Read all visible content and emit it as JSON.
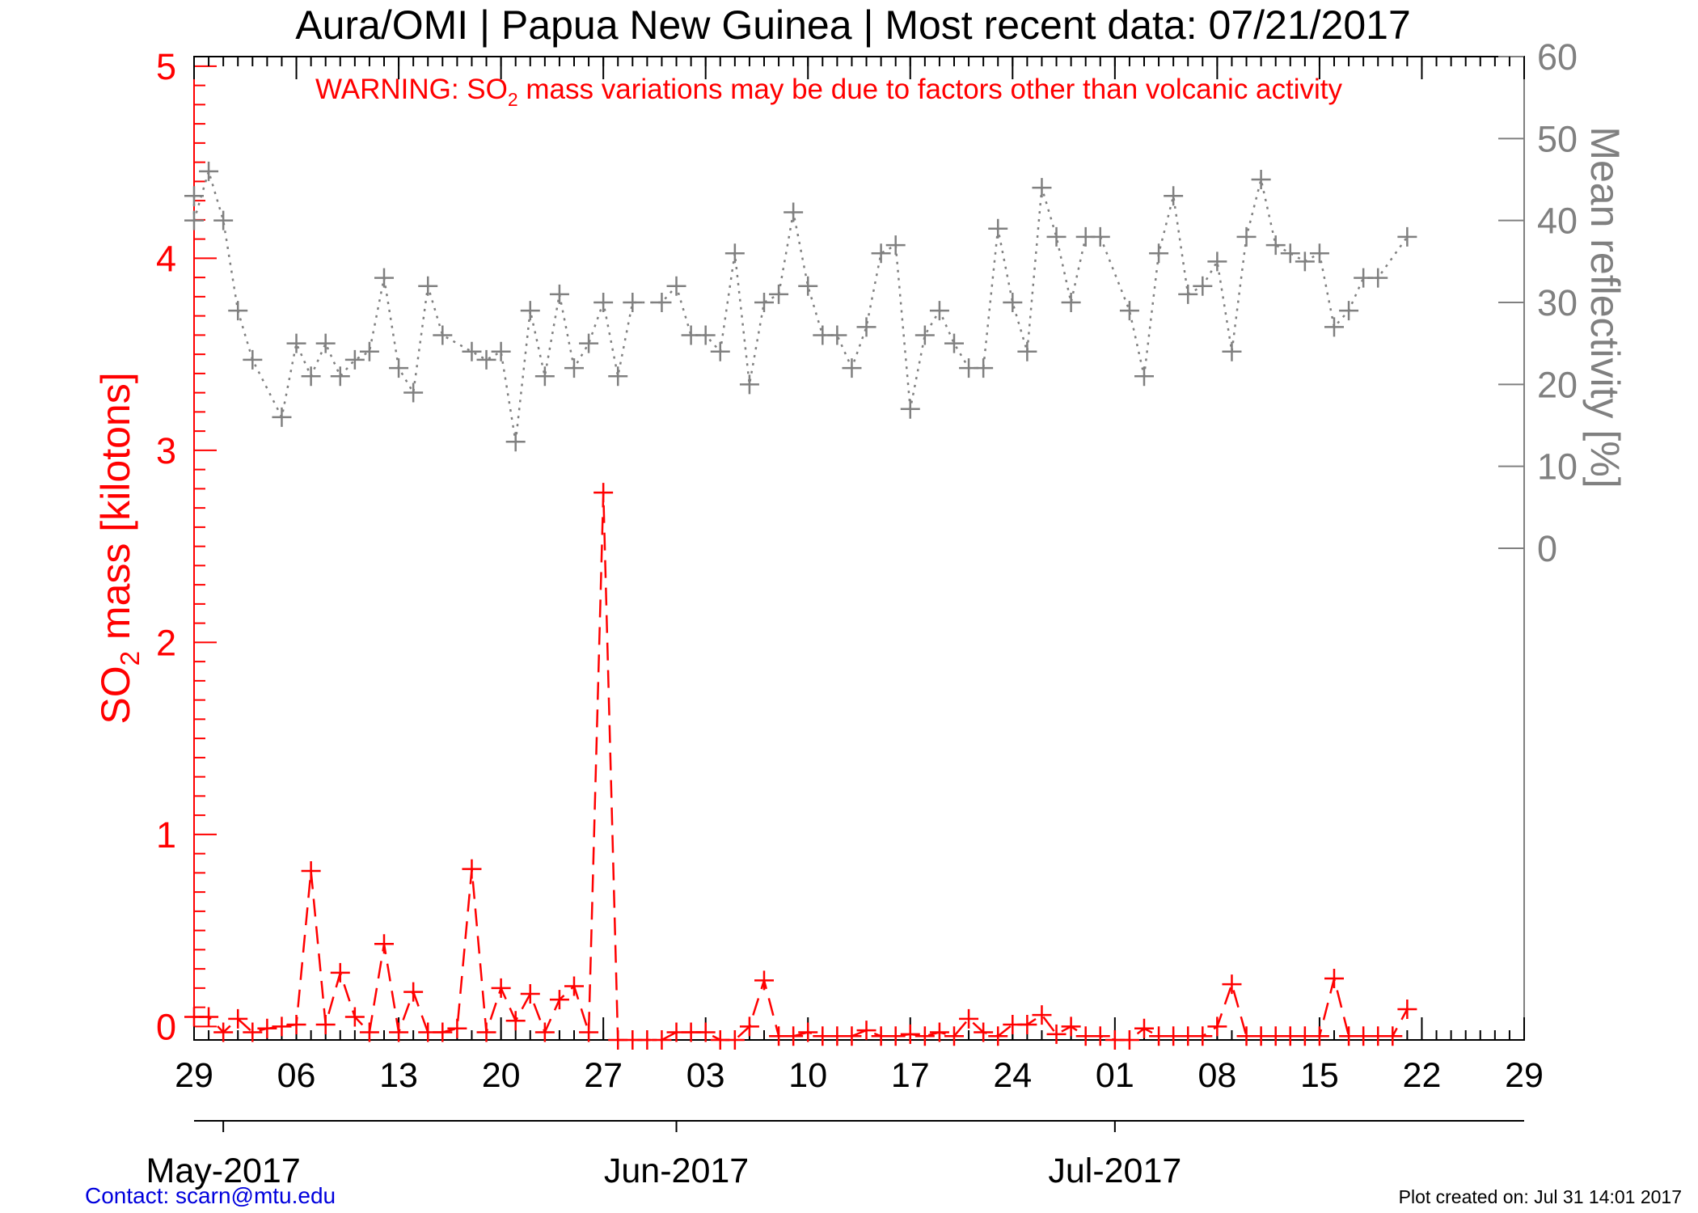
{
  "chart_data": {
    "type": "line",
    "title": "Aura/OMI | Papua New Guinea | Most recent data: 07/21/2017",
    "warning": {
      "prefix": "WARNING: SO",
      "subscript": "2",
      "suffix": " mass variations may be due to factors other than volcanic activity"
    },
    "left_axis": {
      "label_prefix": "SO",
      "label_subscript": "2",
      "label_suffix": " mass [kilotons]",
      "ylim": [
        -0.07,
        5.05
      ],
      "ticks": [
        0,
        1,
        2,
        3,
        4,
        5
      ],
      "tick_labels": [
        "0",
        "1",
        "2",
        "3",
        "4",
        "5"
      ],
      "color": "#ff0000"
    },
    "right_axis": {
      "label": "Mean reflectivity [%]",
      "ylim": [
        -60,
        60
      ],
      "ticks": [
        0,
        10,
        20,
        30,
        40,
        50,
        60
      ],
      "tick_labels": [
        "0",
        "10",
        "20",
        "30",
        "40",
        "50",
        "60"
      ],
      "color": "#808080"
    },
    "x_axis": {
      "start_date": "2017-04-29",
      "end_date": "2017-07-29",
      "tick_dates": [
        "2017-04-29",
        "2017-05-06",
        "2017-05-13",
        "2017-05-20",
        "2017-05-27",
        "2017-06-03",
        "2017-06-10",
        "2017-06-17",
        "2017-06-24",
        "2017-07-01",
        "2017-07-08",
        "2017-07-15",
        "2017-07-22",
        "2017-07-29"
      ],
      "tick_labels": [
        "29",
        "06",
        "13",
        "20",
        "27",
        "03",
        "10",
        "17",
        "24",
        "01",
        "08",
        "15",
        "22",
        "29"
      ],
      "month_dates": [
        "2017-05-01",
        "2017-06-01",
        "2017-07-01"
      ],
      "month_labels": [
        "May-2017",
        "Jun-2017",
        "Jul-2017"
      ]
    },
    "series": [
      {
        "name": "SO2 mass",
        "axis": "left",
        "color": "#ff0000",
        "style": "dashed",
        "points": [
          [
            "2017-04-29",
            0.05
          ],
          [
            "2017-04-30",
            0.05
          ],
          [
            "2017-05-01",
            -0.03
          ],
          [
            "2017-05-02",
            0.04
          ],
          [
            "2017-05-03",
            -0.03
          ],
          [
            "2017-05-04",
            -0.01
          ],
          [
            "2017-05-05",
            0.0
          ],
          [
            "2017-05-06",
            0.01
          ],
          [
            "2017-05-07",
            0.81
          ],
          [
            "2017-05-08",
            0.01
          ],
          [
            "2017-05-09",
            0.28
          ],
          [
            "2017-05-10",
            0.05
          ],
          [
            "2017-05-11",
            -0.03
          ],
          [
            "2017-05-12",
            0.43
          ],
          [
            "2017-05-13",
            -0.03
          ],
          [
            "2017-05-14",
            0.18
          ],
          [
            "2017-05-15",
            -0.03
          ],
          [
            "2017-05-16",
            -0.03
          ],
          [
            "2017-05-17",
            -0.01
          ],
          [
            "2017-05-18",
            0.82
          ],
          [
            "2017-05-19",
            -0.03
          ],
          [
            "2017-05-20",
            0.2
          ],
          [
            "2017-05-21",
            0.03
          ],
          [
            "2017-05-22",
            0.17
          ],
          [
            "2017-05-23",
            -0.03
          ],
          [
            "2017-05-24",
            0.14
          ],
          [
            "2017-05-25",
            0.21
          ],
          [
            "2017-05-26",
            -0.03
          ],
          [
            "2017-05-27",
            2.78
          ],
          [
            "2017-05-28",
            -0.07
          ],
          [
            "2017-05-29",
            -0.07
          ],
          [
            "2017-05-30",
            -0.07
          ],
          [
            "2017-05-31",
            -0.07
          ],
          [
            "2017-06-01",
            -0.03
          ],
          [
            "2017-06-02",
            -0.03
          ],
          [
            "2017-06-03",
            -0.03
          ],
          [
            "2017-06-04",
            -0.07
          ],
          [
            "2017-06-05",
            -0.07
          ],
          [
            "2017-06-06",
            0.0
          ],
          [
            "2017-06-07",
            0.24
          ],
          [
            "2017-06-08",
            -0.05
          ],
          [
            "2017-06-09",
            -0.05
          ],
          [
            "2017-06-10",
            -0.03
          ],
          [
            "2017-06-11",
            -0.05
          ],
          [
            "2017-06-12",
            -0.05
          ],
          [
            "2017-06-13",
            -0.05
          ],
          [
            "2017-06-14",
            -0.02
          ],
          [
            "2017-06-15",
            -0.05
          ],
          [
            "2017-06-16",
            -0.05
          ],
          [
            "2017-06-17",
            -0.04
          ],
          [
            "2017-06-18",
            -0.05
          ],
          [
            "2017-06-19",
            -0.03
          ],
          [
            "2017-06-20",
            -0.05
          ],
          [
            "2017-06-21",
            0.04
          ],
          [
            "2017-06-22",
            -0.03
          ],
          [
            "2017-06-23",
            -0.05
          ],
          [
            "2017-06-24",
            0.01
          ],
          [
            "2017-06-25",
            0.01
          ],
          [
            "2017-06-26",
            0.06
          ],
          [
            "2017-06-27",
            -0.04
          ],
          [
            "2017-06-28",
            0.0
          ],
          [
            "2017-06-29",
            -0.05
          ],
          [
            "2017-06-30",
            -0.05
          ],
          [
            "2017-07-01",
            -0.07
          ],
          [
            "2017-07-02",
            -0.07
          ],
          [
            "2017-07-03",
            -0.01
          ],
          [
            "2017-07-04",
            -0.05
          ],
          [
            "2017-07-05",
            -0.05
          ],
          [
            "2017-07-06",
            -0.05
          ],
          [
            "2017-07-07",
            -0.05
          ],
          [
            "2017-07-08",
            0.0
          ],
          [
            "2017-07-09",
            0.22
          ],
          [
            "2017-07-10",
            -0.05
          ],
          [
            "2017-07-11",
            -0.05
          ],
          [
            "2017-07-12",
            -0.05
          ],
          [
            "2017-07-13",
            -0.05
          ],
          [
            "2017-07-14",
            -0.05
          ],
          [
            "2017-07-15",
            -0.05
          ],
          [
            "2017-07-16",
            0.25
          ],
          [
            "2017-07-17",
            -0.05
          ],
          [
            "2017-07-18",
            -0.05
          ],
          [
            "2017-07-19",
            -0.05
          ],
          [
            "2017-07-20",
            -0.05
          ],
          [
            "2017-07-21",
            0.09
          ]
        ]
      },
      {
        "name": "Mean reflectivity",
        "axis": "right",
        "color": "#808080",
        "style": "dotted",
        "points": [
          [
            "2017-04-29",
            43
          ],
          [
            "2017-04-29",
            40
          ],
          [
            "2017-04-30",
            46
          ],
          [
            "2017-05-01",
            40
          ],
          [
            "2017-05-02",
            29
          ],
          [
            "2017-05-03",
            23
          ],
          [
            "2017-05-05",
            16
          ],
          [
            "2017-05-06",
            25
          ],
          [
            "2017-05-07",
            21
          ],
          [
            "2017-05-08",
            25
          ],
          [
            "2017-05-09",
            21
          ],
          [
            "2017-05-10",
            23
          ],
          [
            "2017-05-11",
            24
          ],
          [
            "2017-05-12",
            33
          ],
          [
            "2017-05-13",
            22
          ],
          [
            "2017-05-14",
            19
          ],
          [
            "2017-05-15",
            32
          ],
          [
            "2017-05-16",
            26
          ],
          [
            "2017-05-18",
            24
          ],
          [
            "2017-05-19",
            23
          ],
          [
            "2017-05-20",
            24
          ],
          [
            "2017-05-21",
            13
          ],
          [
            "2017-05-22",
            29
          ],
          [
            "2017-05-23",
            21
          ],
          [
            "2017-05-24",
            31
          ],
          [
            "2017-05-25",
            22
          ],
          [
            "2017-05-26",
            25
          ],
          [
            "2017-05-27",
            30
          ],
          [
            "2017-05-28",
            21
          ],
          [
            "2017-05-29",
            30
          ],
          [
            "2017-05-31",
            30
          ],
          [
            "2017-06-01",
            32
          ],
          [
            "2017-06-02",
            26
          ],
          [
            "2017-06-03",
            26
          ],
          [
            "2017-06-04",
            24
          ],
          [
            "2017-06-05",
            36
          ],
          [
            "2017-06-06",
            20
          ],
          [
            "2017-06-07",
            30
          ],
          [
            "2017-06-08",
            31
          ],
          [
            "2017-06-09",
            41
          ],
          [
            "2017-06-10",
            32
          ],
          [
            "2017-06-11",
            26
          ],
          [
            "2017-06-12",
            26
          ],
          [
            "2017-06-13",
            22
          ],
          [
            "2017-06-14",
            27
          ],
          [
            "2017-06-15",
            36
          ],
          [
            "2017-06-16",
            37
          ],
          [
            "2017-06-17",
            17
          ],
          [
            "2017-06-18",
            26
          ],
          [
            "2017-06-19",
            29
          ],
          [
            "2017-06-20",
            25
          ],
          [
            "2017-06-21",
            22
          ],
          [
            "2017-06-22",
            22
          ],
          [
            "2017-06-23",
            39
          ],
          [
            "2017-06-24",
            30
          ],
          [
            "2017-06-25",
            24
          ],
          [
            "2017-06-26",
            44
          ],
          [
            "2017-06-27",
            38
          ],
          [
            "2017-06-28",
            30
          ],
          [
            "2017-06-29",
            38
          ],
          [
            "2017-06-30",
            38
          ],
          [
            "2017-07-02",
            29
          ],
          [
            "2017-07-03",
            21
          ],
          [
            "2017-07-04",
            36
          ],
          [
            "2017-07-05",
            43
          ],
          [
            "2017-07-06",
            31
          ],
          [
            "2017-07-07",
            32
          ],
          [
            "2017-07-08",
            35
          ],
          [
            "2017-07-09",
            24
          ],
          [
            "2017-07-10",
            38
          ],
          [
            "2017-07-11",
            45
          ],
          [
            "2017-07-12",
            37
          ],
          [
            "2017-07-13",
            36
          ],
          [
            "2017-07-14",
            35
          ],
          [
            "2017-07-15",
            36
          ],
          [
            "2017-07-16",
            27
          ],
          [
            "2017-07-17",
            29
          ],
          [
            "2017-07-18",
            33
          ],
          [
            "2017-07-19",
            33
          ],
          [
            "2017-07-21",
            38
          ]
        ]
      }
    ]
  },
  "footer": {
    "contact": "Contact: scarn@mtu.edu",
    "created": "Plot created on: Jul 31 14:01 2017"
  }
}
